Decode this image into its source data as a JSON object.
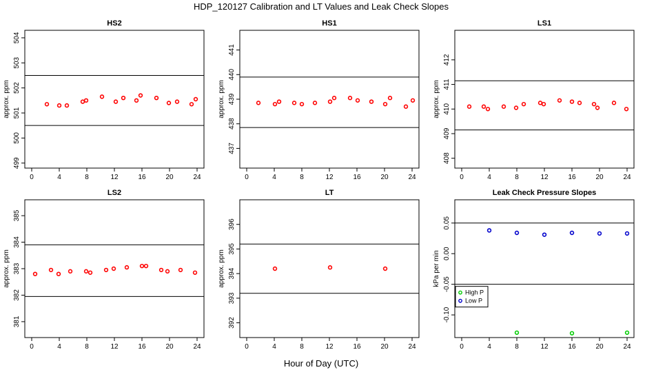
{
  "figure": {
    "title": "HDP_120127  Calibration and LT Values and Leak Check Slopes",
    "xlabel": "Hour of Day (UTC)"
  },
  "chart_data": [
    {
      "type": "scatter",
      "title": "HS2",
      "ylabel": "approx. ppm",
      "xlim": [
        -1,
        25
      ],
      "ylim": [
        498.8,
        504.3
      ],
      "xticks": [
        "0",
        "4",
        "8",
        "12",
        "16",
        "20",
        "24"
      ],
      "yticks": [
        "499",
        "500",
        "501",
        "502",
        "503",
        "504"
      ],
      "hlines": [
        502.5,
        500.5
      ],
      "series": [
        {
          "color": "#ff0000",
          "x": [
            2.2,
            4.0,
            5.1,
            7.4,
            7.9,
            10.2,
            12.2,
            13.3,
            15.2,
            15.8,
            18.1,
            19.9,
            21.1,
            23.2,
            23.8
          ],
          "y": [
            501.35,
            501.3,
            501.3,
            501.45,
            501.5,
            501.65,
            501.45,
            501.6,
            501.5,
            501.7,
            501.6,
            501.4,
            501.45,
            501.35,
            501.55
          ]
        }
      ]
    },
    {
      "type": "scatter",
      "title": "HS1",
      "ylabel": "approx. ppm",
      "xlim": [
        -1,
        25
      ],
      "ylim": [
        436.2,
        441.8
      ],
      "xticks": [
        "0",
        "4",
        "8",
        "12",
        "16",
        "20",
        "24"
      ],
      "yticks": [
        "437",
        "438",
        "439",
        "440",
        "441"
      ],
      "hlines": [
        439.9,
        437.85
      ],
      "series": [
        {
          "color": "#ff0000",
          "x": [
            1.7,
            4.1,
            4.7,
            6.9,
            8.0,
            9.9,
            12.1,
            12.7,
            15.0,
            16.1,
            18.1,
            20.1,
            20.8,
            23.1,
            24.1
          ],
          "y": [
            438.85,
            438.8,
            438.9,
            438.85,
            438.8,
            438.85,
            438.9,
            439.05,
            439.05,
            438.95,
            438.9,
            438.8,
            439.05,
            438.7,
            438.95
          ]
        }
      ]
    },
    {
      "type": "scatter",
      "title": "LS1",
      "ylabel": "approx. ppm",
      "xlim": [
        -1,
        25
      ],
      "ylim": [
        407.6,
        413.2
      ],
      "xticks": [
        "0",
        "4",
        "8",
        "12",
        "16",
        "20",
        "24"
      ],
      "yticks": [
        "408",
        "409",
        "410",
        "411",
        "412"
      ],
      "hlines": [
        411.15,
        409.15
      ],
      "series": [
        {
          "color": "#ff0000",
          "x": [
            1.1,
            3.2,
            3.8,
            6.1,
            7.9,
            9.0,
            11.4,
            11.9,
            14.2,
            16.0,
            17.1,
            19.2,
            19.7,
            22.1,
            23.9
          ],
          "y": [
            410.1,
            410.1,
            410.0,
            410.1,
            410.05,
            410.2,
            410.25,
            410.2,
            410.35,
            410.3,
            410.25,
            410.2,
            410.05,
            410.25,
            410.0
          ]
        }
      ]
    },
    {
      "type": "scatter",
      "title": "LS2",
      "ylabel": "approx. ppm",
      "xlim": [
        -1,
        25
      ],
      "ylim": [
        380.4,
        385.6
      ],
      "xticks": [
        "0",
        "4",
        "8",
        "12",
        "16",
        "20",
        "24"
      ],
      "yticks": [
        "381",
        "382",
        "383",
        "384",
        "385"
      ],
      "hlines": [
        383.9,
        381.95
      ],
      "series": [
        {
          "color": "#ff0000",
          "x": [
            0.5,
            2.8,
            3.9,
            5.6,
            7.9,
            8.5,
            10.8,
            11.9,
            13.8,
            16.0,
            16.6,
            18.8,
            19.7,
            21.6,
            23.7
          ],
          "y": [
            382.8,
            382.95,
            382.8,
            382.9,
            382.9,
            382.85,
            382.95,
            383.0,
            383.05,
            383.1,
            383.1,
            382.95,
            382.9,
            382.95,
            382.85
          ]
        }
      ]
    },
    {
      "type": "scatter",
      "title": "LT",
      "ylabel": "approx. ppm",
      "xlim": [
        -1,
        25
      ],
      "ylim": [
        391.4,
        397.0
      ],
      "xticks": [
        "0",
        "4",
        "8",
        "12",
        "16",
        "20",
        "24"
      ],
      "yticks": [
        "392",
        "393",
        "394",
        "395",
        "396"
      ],
      "hlines": [
        395.2,
        393.2
      ],
      "series": [
        {
          "color": "#ff0000",
          "x": [
            4.1,
            12.1,
            20.1
          ],
          "y": [
            394.2,
            394.25,
            394.2
          ]
        }
      ]
    },
    {
      "type": "scatter",
      "title": "Leak Check Pressure Slopes",
      "ylabel": "kPa per min",
      "xlim": [
        -1,
        25
      ],
      "ylim": [
        -0.137,
        0.088
      ],
      "xticks": [
        "0",
        "4",
        "8",
        "12",
        "16",
        "20",
        "24"
      ],
      "yticks": [
        "-0.10",
        "-0.05",
        "0.00",
        "0.05"
      ],
      "hlines": [
        0.05,
        -0.05
      ],
      "legend": {
        "position": "left",
        "entries": [
          "High P",
          "Low P"
        ]
      },
      "series": [
        {
          "name": "High P",
          "color": "#00cc00",
          "x": [
            8,
            16,
            24
          ],
          "y": [
            -0.129,
            -0.13,
            -0.129
          ]
        },
        {
          "name": "Low P",
          "color": "#0000cc",
          "x": [
            4,
            8,
            12,
            16,
            20,
            24
          ],
          "y": [
            0.038,
            0.034,
            0.031,
            0.034,
            0.033,
            0.033
          ]
        }
      ]
    }
  ]
}
